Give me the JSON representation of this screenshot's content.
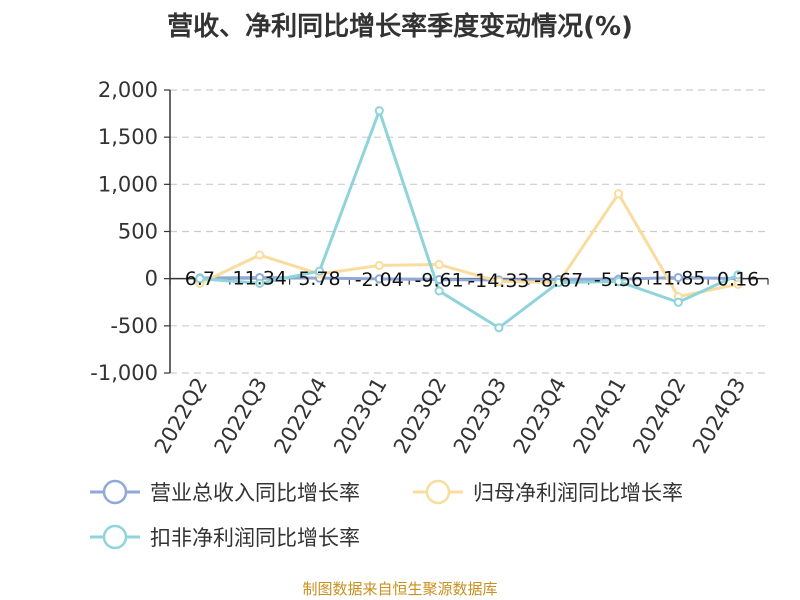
{
  "title": "营收、净利同比增长率季度变动情况(%)",
  "source": "制图数据来自恒生聚源数据库",
  "chart_data": {
    "type": "line",
    "title": "营收、净利同比增长率季度变动情况(%)",
    "xlabel": "",
    "ylabel": "",
    "ylim": [
      -1000,
      2000
    ],
    "yticks": [
      -1000,
      -500,
      0,
      500,
      1000,
      1500,
      2000
    ],
    "ytick_labels": [
      "-1,000",
      "-500",
      "0",
      "500",
      "1,000",
      "1,500",
      "2,000"
    ],
    "grid": true,
    "legend": "bottom",
    "categories": [
      "2022Q2",
      "2022Q3",
      "2022Q4",
      "2023Q1",
      "2023Q2",
      "2023Q3",
      "2023Q4",
      "2024Q1",
      "2024Q2",
      "2024Q3"
    ],
    "series": [
      {
        "name": "营业总收入同比增长率",
        "color": "#8fa9d9",
        "values": [
          6.7,
          11.34,
          5.78,
          -2.04,
          -9.61,
          -14.33,
          -8.67,
          -5.56,
          11.85,
          0.16
        ],
        "labels": [
          "6.7",
          "11.34",
          "5.78",
          "-2.04",
          "-9.61",
          "-14.33",
          "-8.67",
          "-5.56",
          "11.85",
          "0.16"
        ]
      },
      {
        "name": "归母净利润同比增长率",
        "color": "#f9dc9e",
        "values": [
          -50,
          250,
          50,
          140,
          150,
          -30,
          -40,
          900,
          -190,
          -60
        ]
      },
      {
        "name": "扣非净利润同比增长率",
        "color": "#8fd4da",
        "values": [
          0,
          -50,
          80,
          1780,
          -130,
          -520,
          -40,
          -30,
          -250,
          40
        ]
      }
    ]
  }
}
